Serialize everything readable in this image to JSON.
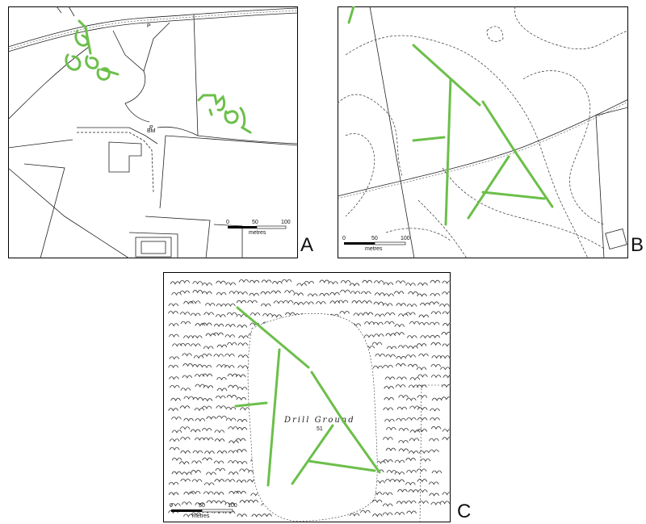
{
  "panels": [
    {
      "id": "A",
      "letter": "A",
      "scalebar": {
        "ticks": [
          "0",
          "50",
          "100"
        ],
        "unit": "metres"
      },
      "labels": {
        "spot_height": "BM",
        "point_p1": "P",
        "point_p2": "P"
      }
    },
    {
      "id": "B",
      "letter": "B",
      "scalebar": {
        "ticks": [
          "0",
          "50",
          "100"
        ],
        "unit": "metres"
      }
    },
    {
      "id": "C",
      "letter": "C",
      "scalebar": {
        "ticks": [
          "0",
          "50",
          "100"
        ],
        "unit": "metres"
      },
      "labels": {
        "area_name": "Drill Ground",
        "spot_height": "51"
      }
    }
  ],
  "colors": {
    "feature": "#6cbf4a",
    "linework": "#222222",
    "frame": "#000000"
  }
}
